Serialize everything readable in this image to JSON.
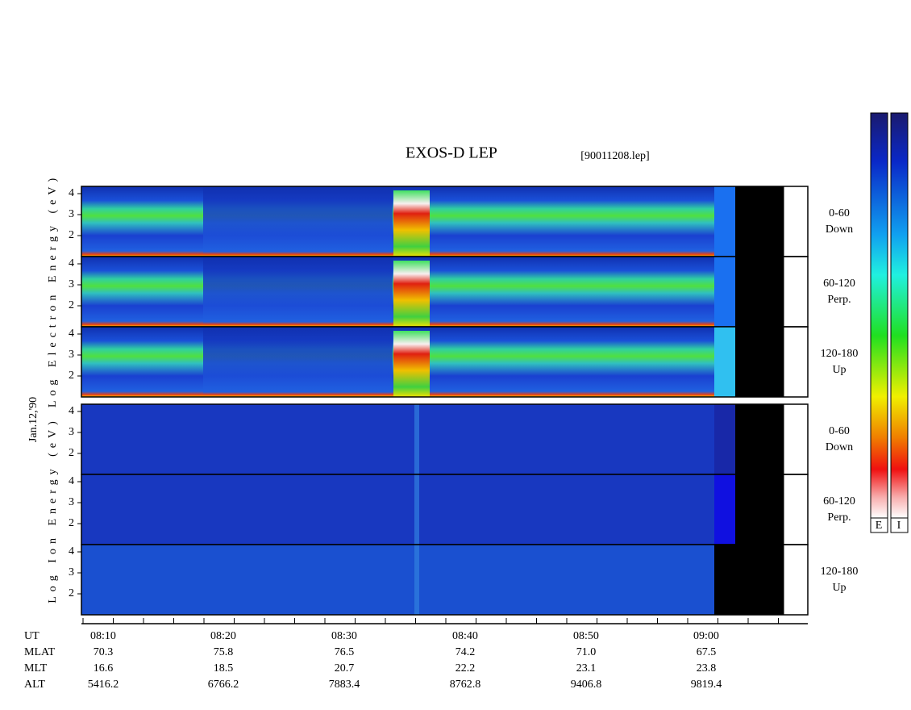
{
  "title": "EXOS-D LEP",
  "file": "[90011208.lep]",
  "date": "Jan.12,'90",
  "electron_axis_label": "Log Electron Energy (eV)",
  "ion_axis_label": "Log Ion Energy (eV)",
  "yticks": [
    "2",
    "3",
    "4"
  ],
  "pitch_labels": [
    {
      "range": "0-60",
      "dir": "Down"
    },
    {
      "range": "60-120",
      "dir": "Perp."
    },
    {
      "range": "120-180",
      "dir": "Up"
    }
  ],
  "colorbar_labels": [
    "E",
    "I"
  ],
  "time_table": [
    {
      "label": "UT",
      "values": [
        "08:10",
        "08:20",
        "08:30",
        "08:40",
        "08:50",
        "09:00"
      ]
    },
    {
      "label": "MLAT",
      "values": [
        "70.3",
        "75.8",
        "76.5",
        "74.2",
        "71.0",
        "67.5"
      ]
    },
    {
      "label": "MLT",
      "values": [
        "16.6",
        "18.5",
        "20.7",
        "22.2",
        "23.1",
        "23.8"
      ]
    },
    {
      "label": "ALT",
      "values": [
        "5416.2",
        "6766.2",
        "7883.4",
        "8762.8",
        "9406.8",
        "9819.4"
      ]
    }
  ]
}
